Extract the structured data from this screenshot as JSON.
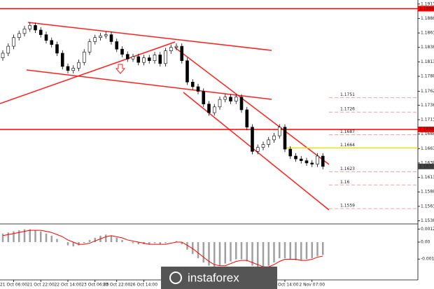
{
  "chart_data": {
    "type": "candlestick",
    "categories": [
      null,
      null,
      "21 Oct 06:00",
      null,
      null,
      null,
      null,
      "21 Oct 22:00",
      null,
      null,
      null,
      null,
      "22 Oct 14:00",
      null,
      null,
      null,
      null,
      "23 Oct 06:00",
      null,
      null,
      null,
      "23 Oct 22:00",
      null,
      null,
      null,
      null,
      "26 Oct 14:00",
      null,
      null,
      null,
      null,
      null,
      null,
      null,
      null,
      null,
      null,
      null,
      null,
      null,
      null,
      null,
      null,
      null,
      null,
      null,
      null,
      null,
      null,
      null,
      null,
      null,
      "30 Oct 14:00",
      null,
      null,
      null,
      null,
      "2 Nov 07:00",
      null,
      null
    ],
    "open": [
      1.182,
      1.1828,
      1.184,
      1.1855,
      1.1862,
      1.187,
      1.1876,
      1.1868,
      1.186,
      1.185,
      1.1843,
      1.1828,
      1.1805,
      1.1798,
      1.1802,
      1.1812,
      1.183,
      1.1848,
      1.1855,
      1.1858,
      1.186,
      1.1848,
      1.1835,
      1.1826,
      1.1818,
      1.1822,
      1.1812,
      1.182,
      1.1815,
      1.1825,
      1.181,
      1.1832,
      1.1838,
      1.184,
      1.1815,
      1.1778,
      1.177,
      1.1762,
      1.174,
      1.1725,
      1.1735,
      1.1748,
      1.1752,
      1.1745,
      1.1752,
      1.173,
      1.17,
      1.1658,
      1.1665,
      1.167,
      1.1678,
      1.1685,
      1.17,
      1.1662,
      1.165,
      1.1645,
      1.1642,
      1.1638,
      1.1636,
      1.165
    ],
    "high": [
      1.1833,
      1.1845,
      1.186,
      1.1867,
      1.1875,
      1.1881,
      1.1881,
      1.1873,
      1.1865,
      1.1855,
      1.1848,
      1.1833,
      1.181,
      1.1807,
      1.1817,
      1.1835,
      1.1853,
      1.186,
      1.1863,
      1.1865,
      1.1865,
      1.1853,
      1.184,
      1.1831,
      1.1827,
      1.1827,
      1.1825,
      1.1825,
      1.183,
      1.183,
      1.1837,
      1.1843,
      1.1845,
      1.1845,
      1.182,
      1.1783,
      1.1775,
      1.1767,
      1.1745,
      1.174,
      1.1753,
      1.1757,
      1.1757,
      1.1757,
      1.1757,
      1.1735,
      1.1705,
      1.167,
      1.1675,
      1.1683,
      1.169,
      1.1705,
      1.1705,
      1.1667,
      1.1655,
      1.165,
      1.1647,
      1.1643,
      1.1655,
      1.1655
    ],
    "low": [
      1.1815,
      1.1823,
      1.1835,
      1.185,
      1.1857,
      1.1865,
      1.1863,
      1.1855,
      1.1845,
      1.1838,
      1.1823,
      1.18,
      1.1793,
      1.1793,
      1.1797,
      1.1807,
      1.1825,
      1.1843,
      1.185,
      1.1853,
      1.1843,
      1.183,
      1.1821,
      1.1813,
      1.1813,
      1.1807,
      1.1807,
      1.181,
      1.181,
      1.1805,
      1.1805,
      1.1827,
      1.1833,
      1.181,
      1.1773,
      1.1765,
      1.1757,
      1.1735,
      1.172,
      1.172,
      1.173,
      1.1743,
      1.174,
      1.174,
      1.1725,
      1.1695,
      1.1653,
      1.1653,
      1.166,
      1.1665,
      1.1673,
      1.168,
      1.1657,
      1.1645,
      1.164,
      1.1637,
      1.1633,
      1.1631,
      1.1631,
      1.1627
    ],
    "close": [
      1.1828,
      1.184,
      1.1855,
      1.1862,
      1.187,
      1.1876,
      1.1868,
      1.186,
      1.185,
      1.1843,
      1.1828,
      1.1805,
      1.1798,
      1.1802,
      1.1812,
      1.183,
      1.1848,
      1.1855,
      1.1858,
      1.186,
      1.1848,
      1.1835,
      1.1826,
      1.1818,
      1.1822,
      1.1812,
      1.182,
      1.1815,
      1.1825,
      1.181,
      1.1832,
      1.1838,
      1.184,
      1.1815,
      1.1778,
      1.177,
      1.1762,
      1.174,
      1.1725,
      1.1735,
      1.1748,
      1.1752,
      1.1745,
      1.1752,
      1.173,
      1.17,
      1.1658,
      1.1665,
      1.167,
      1.1678,
      1.1685,
      1.17,
      1.1662,
      1.165,
      1.1645,
      1.1642,
      1.1638,
      1.1636,
      1.165,
      1.1632
    ],
    "ylim": [
      1.1535,
      1.192
    ],
    "yticks": [
      1.1913,
      1.1888,
      1.1863,
      1.1838,
      1.1813,
      1.1788,
      1.1762,
      1.1738,
      1.1713,
      1.1688,
      1.1663,
      1.1638,
      1.1613,
      1.1588,
      1.1563,
      1.1538
    ],
    "hlines": [
      {
        "value": 1.1905,
        "color": "#ff0000"
      },
      {
        "value": 1.1696,
        "color": "#ff0000"
      }
    ],
    "fib": [
      {
        "value": 1.1751,
        "color": "#f4a0a0"
      },
      {
        "value": 1.1726,
        "color": "#f4a0a0"
      },
      {
        "value": 1.1687,
        "color": "#f4a0a0"
      },
      {
        "value": 1.1664,
        "color": "#ffd700"
      },
      {
        "value": 1.1623,
        "color": "#f4a0a0"
      },
      {
        "value": 1.16,
        "color": "#f4a0a0"
      },
      {
        "value": 1.1559,
        "color": "#f4a0a0"
      }
    ],
    "macd": {
      "histogram": [
        0.0008,
        0.0009,
        0.001,
        0.0011,
        0.0012,
        0.0012,
        0.0011,
        0.001,
        0.0008,
        0.0006,
        0.0003,
        0.0,
        -0.0003,
        -0.0004,
        -0.0003,
        -0.0001,
        0.0002,
        0.0004,
        0.0006,
        0.0007,
        0.0006,
        0.0004,
        0.0002,
        0.0,
        -0.0001,
        -0.0002,
        -0.0002,
        -0.0002,
        -0.0001,
        -0.0002,
        -0.0001,
        0.0,
        0.0001,
        -0.0002,
        -0.0007,
        -0.0011,
        -0.0015,
        -0.0019,
        -0.0022,
        -0.0023,
        -0.0022,
        -0.002,
        -0.0018,
        -0.0016,
        -0.0016,
        -0.0018,
        -0.0022,
        -0.0024,
        -0.0024,
        -0.0022,
        -0.0019,
        -0.0015,
        -0.0015,
        -0.0016,
        -0.0017,
        -0.0017,
        -0.0016,
        -0.0015,
        -0.0013,
        -0.0012
      ],
      "signal": [
        0.0006,
        0.0007,
        0.0008,
        0.0009,
        0.001,
        0.0011,
        0.0011,
        0.0011,
        0.001,
        0.0009,
        0.0007,
        0.0005,
        0.0002,
        0.0,
        -0.0002,
        -0.0002,
        -0.0001,
        0.0001,
        0.0003,
        0.0005,
        0.0006,
        0.0005,
        0.0004,
        0.0002,
        0.0001,
        0.0,
        -0.0001,
        -0.0002,
        -0.0002,
        -0.0002,
        -0.0002,
        -0.0001,
        0.0,
        0.0,
        -0.0003,
        -0.0006,
        -0.001,
        -0.0014,
        -0.0018,
        -0.0021,
        -0.0022,
        -0.0022,
        -0.002,
        -0.0018,
        -0.0017,
        -0.0017,
        -0.0019,
        -0.0021,
        -0.0023,
        -0.0023,
        -0.0021,
        -0.0018,
        -0.0016,
        -0.0016,
        -0.0016,
        -0.0017,
        -0.0017,
        -0.0016,
        -0.0014,
        -0.0013
      ],
      "hist_color": "#a0a0a0",
      "signal_color": "#ff0000",
      "ylim": [
        -0.003,
        0.0015
      ],
      "yticks": [
        0.00122,
        {
          "value": 0,
          "label": "0.00"
        },
        -0.00158
      ]
    },
    "logo": "instaforex"
  }
}
